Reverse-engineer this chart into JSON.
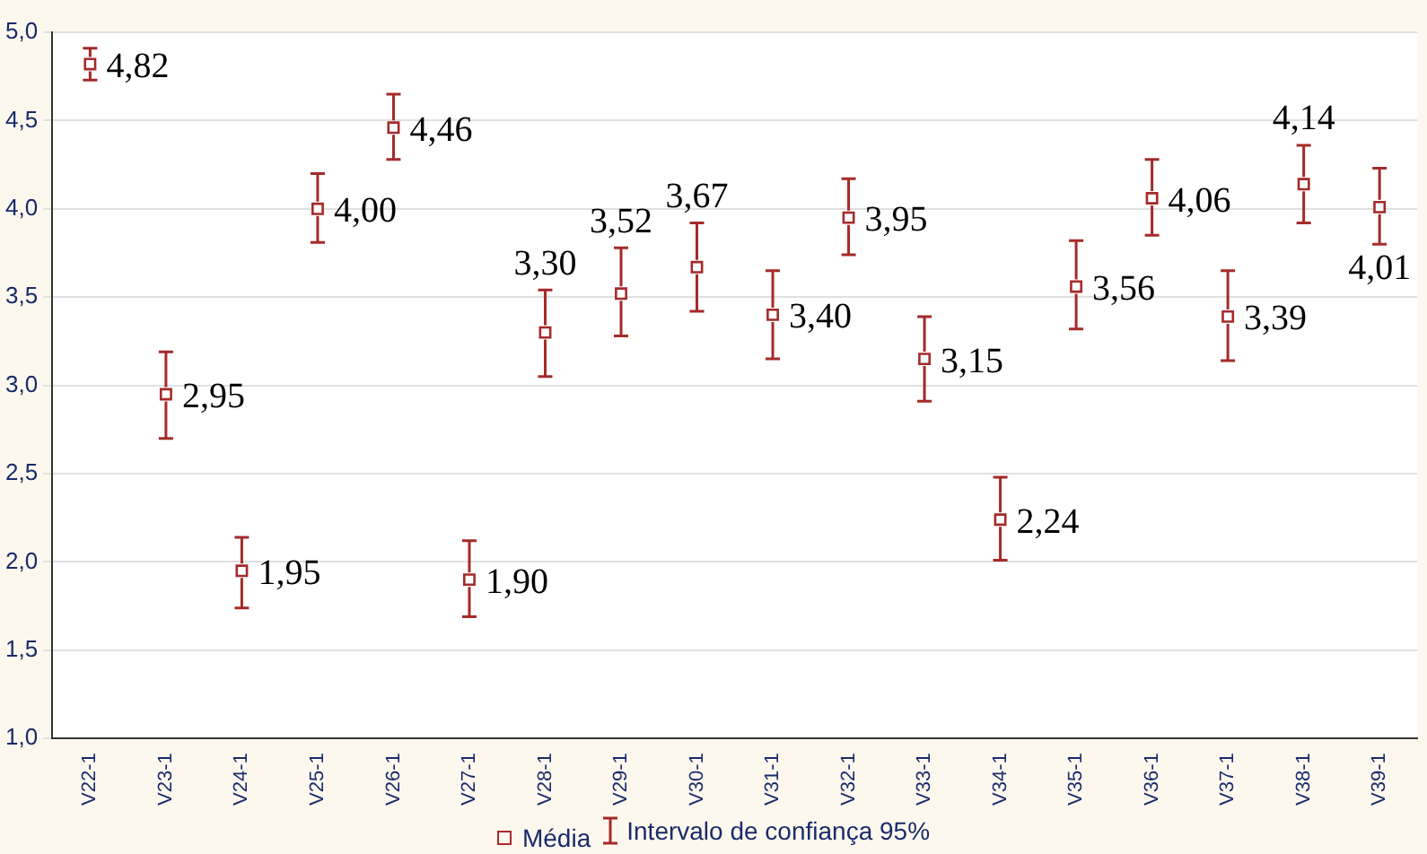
{
  "chart_data": {
    "type": "scatter",
    "categories": [
      "V22-1",
      "V23-1",
      "V24-1",
      "V25-1",
      "V26-1",
      "V27-1",
      "V28-1",
      "V29-1",
      "V30-1",
      "V31-1",
      "V32-1",
      "V33-1",
      "V34-1",
      "V35-1",
      "V36-1",
      "V37-1",
      "V38-1",
      "V39-1"
    ],
    "series": [
      {
        "name": "Média",
        "color": "#a52a2a",
        "values": [
          4.82,
          2.95,
          1.95,
          4.0,
          4.46,
          1.9,
          3.3,
          3.52,
          3.67,
          3.4,
          3.95,
          3.15,
          2.24,
          3.56,
          4.06,
          3.39,
          4.14,
          4.01
        ],
        "value_labels": [
          "4,82",
          "2,95",
          "1,95",
          "4,00",
          "4,46",
          "1,90",
          "3,30",
          "3,52",
          "3,67",
          "3,40",
          "3,95",
          "3,15",
          "2,24",
          "3,56",
          "4,06",
          "3,39",
          "4,14",
          "4,01"
        ],
        "errors": [
          [
            4.73,
            4.91
          ],
          [
            2.7,
            3.19
          ],
          [
            1.74,
            2.14
          ],
          [
            3.81,
            4.2
          ],
          [
            4.28,
            4.65
          ],
          [
            1.69,
            2.12
          ],
          [
            3.05,
            3.54
          ],
          [
            3.28,
            3.78
          ],
          [
            3.42,
            3.92
          ],
          [
            3.15,
            3.65
          ],
          [
            3.74,
            4.17
          ],
          [
            2.91,
            3.39
          ],
          [
            2.01,
            2.48
          ],
          [
            3.32,
            3.82
          ],
          [
            3.85,
            4.28
          ],
          [
            3.14,
            3.65
          ],
          [
            3.92,
            4.36
          ],
          [
            3.8,
            4.23
          ]
        ]
      }
    ],
    "ylim": [
      1,
      5
    ],
    "yticks": [
      {
        "value": 1,
        "label": "1,0"
      },
      {
        "value": 1.5,
        "label": "1,5"
      },
      {
        "value": 2,
        "label": "2,0"
      },
      {
        "value": 2.5,
        "label": "2,5"
      },
      {
        "value": 3,
        "label": "3,0"
      },
      {
        "value": 3.5,
        "label": "3,5"
      },
      {
        "value": 4,
        "label": "4,0"
      },
      {
        "value": 4.5,
        "label": "4,5"
      },
      {
        "value": 5,
        "label": "5,0"
      }
    ],
    "grid": "y",
    "legend": "bottom",
    "marker": "square",
    "annotations": [
      "Intervalo de confiança 95%"
    ]
  }
}
